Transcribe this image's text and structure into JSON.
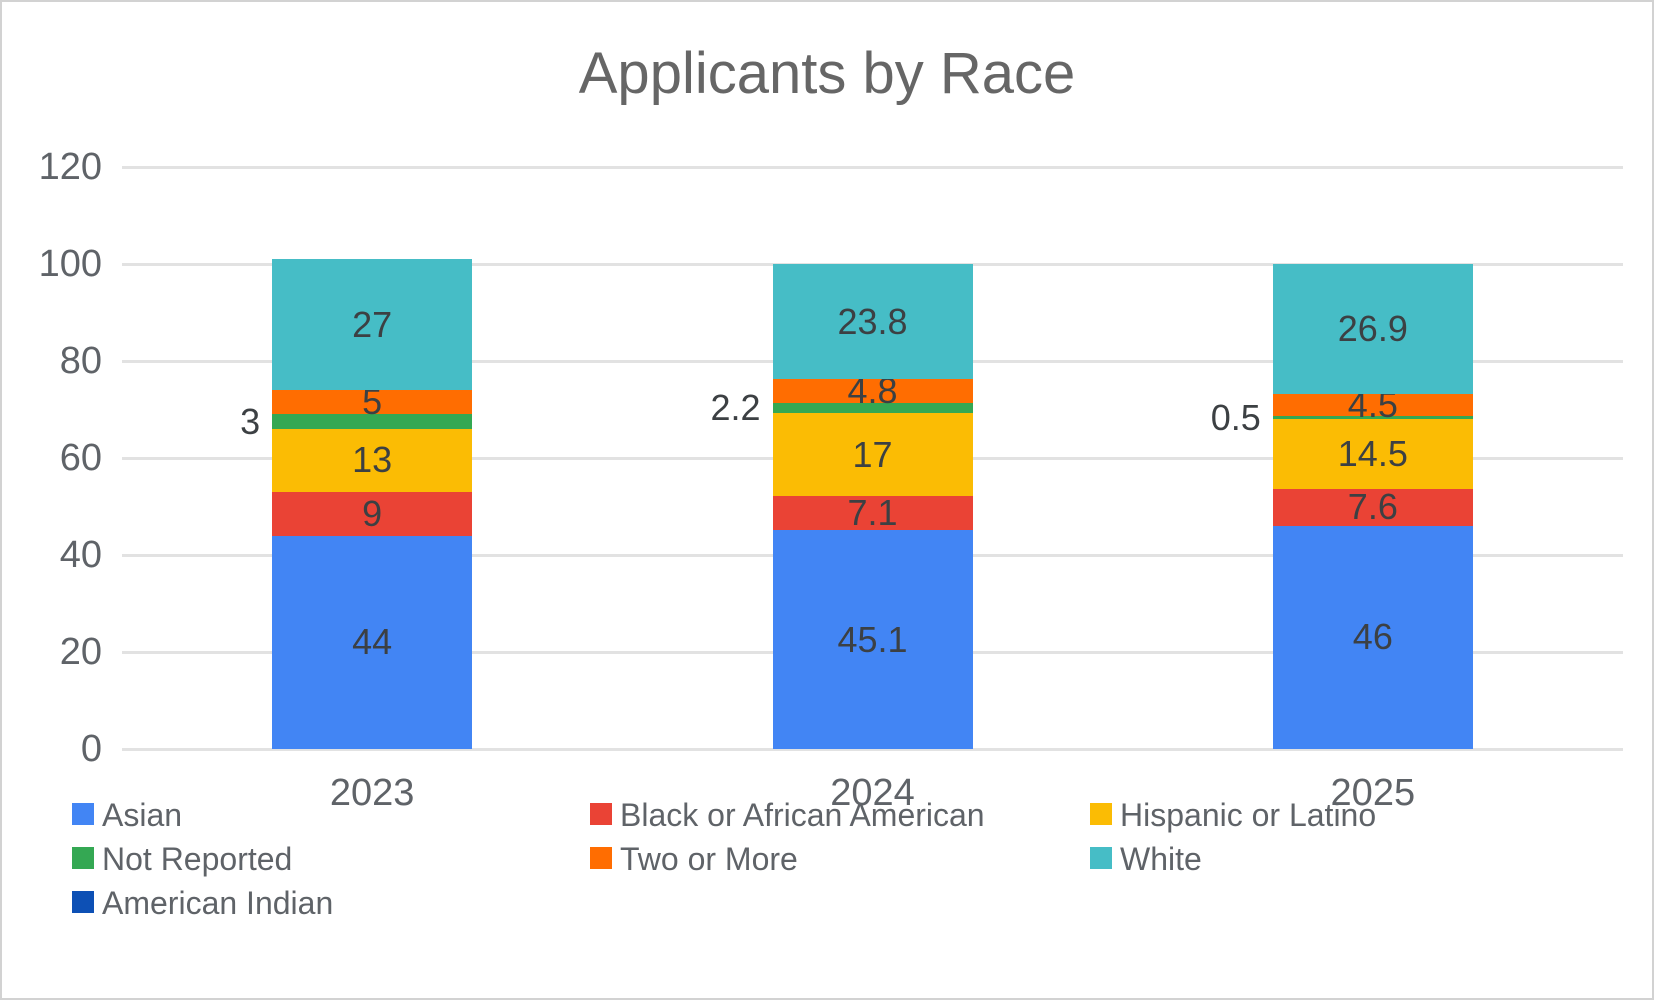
{
  "chart_data": {
    "type": "bar",
    "stacked": true,
    "title": "Applicants by Race",
    "categories": [
      "2023",
      "2024",
      "2025"
    ],
    "series": [
      {
        "name": "Asian",
        "color": "#4285F4",
        "values": [
          44,
          45.1,
          46
        ]
      },
      {
        "name": "Black or African American",
        "color": "#EA4335",
        "values": [
          9,
          7.1,
          7.6
        ]
      },
      {
        "name": "Hispanic or Latino",
        "color": "#FBBC04",
        "values": [
          13,
          17,
          14.5
        ]
      },
      {
        "name": "Not Reported",
        "color": "#34A853",
        "values": [
          3,
          2.2,
          0.5
        ],
        "labels_outside": true
      },
      {
        "name": "Two or More",
        "color": "#FF6D01",
        "values": [
          5,
          4.8,
          4.5
        ]
      },
      {
        "name": "White",
        "color": "#46BDC6",
        "values": [
          27,
          23.8,
          26.9
        ]
      },
      {
        "name": "American Indian",
        "color": "#0D50B5",
        "values": [
          0,
          0,
          0
        ]
      }
    ],
    "data_labels": [
      [
        "44",
        "45.1",
        "46"
      ],
      [
        "9",
        "7.1",
        "7.6"
      ],
      [
        "13",
        "17",
        "14.5"
      ],
      [
        "3",
        "2.2",
        "0.5"
      ],
      [
        "5",
        "4.8",
        "4.5"
      ],
      [
        "27",
        "23.8",
        "26.9"
      ],
      [
        "",
        "",
        ""
      ]
    ],
    "xlabel": "",
    "ylabel": "",
    "ylim": [
      0,
      120
    ],
    "yticks": [
      "0",
      "20",
      "40",
      "60",
      "80",
      "100",
      "120"
    ],
    "grid": true,
    "legend_position": "bottom",
    "colors": {
      "gridline": "#e2e2e2",
      "axis_text": "#5f6368",
      "data_label_text": "#3c4043",
      "title_text": "#666666"
    }
  }
}
